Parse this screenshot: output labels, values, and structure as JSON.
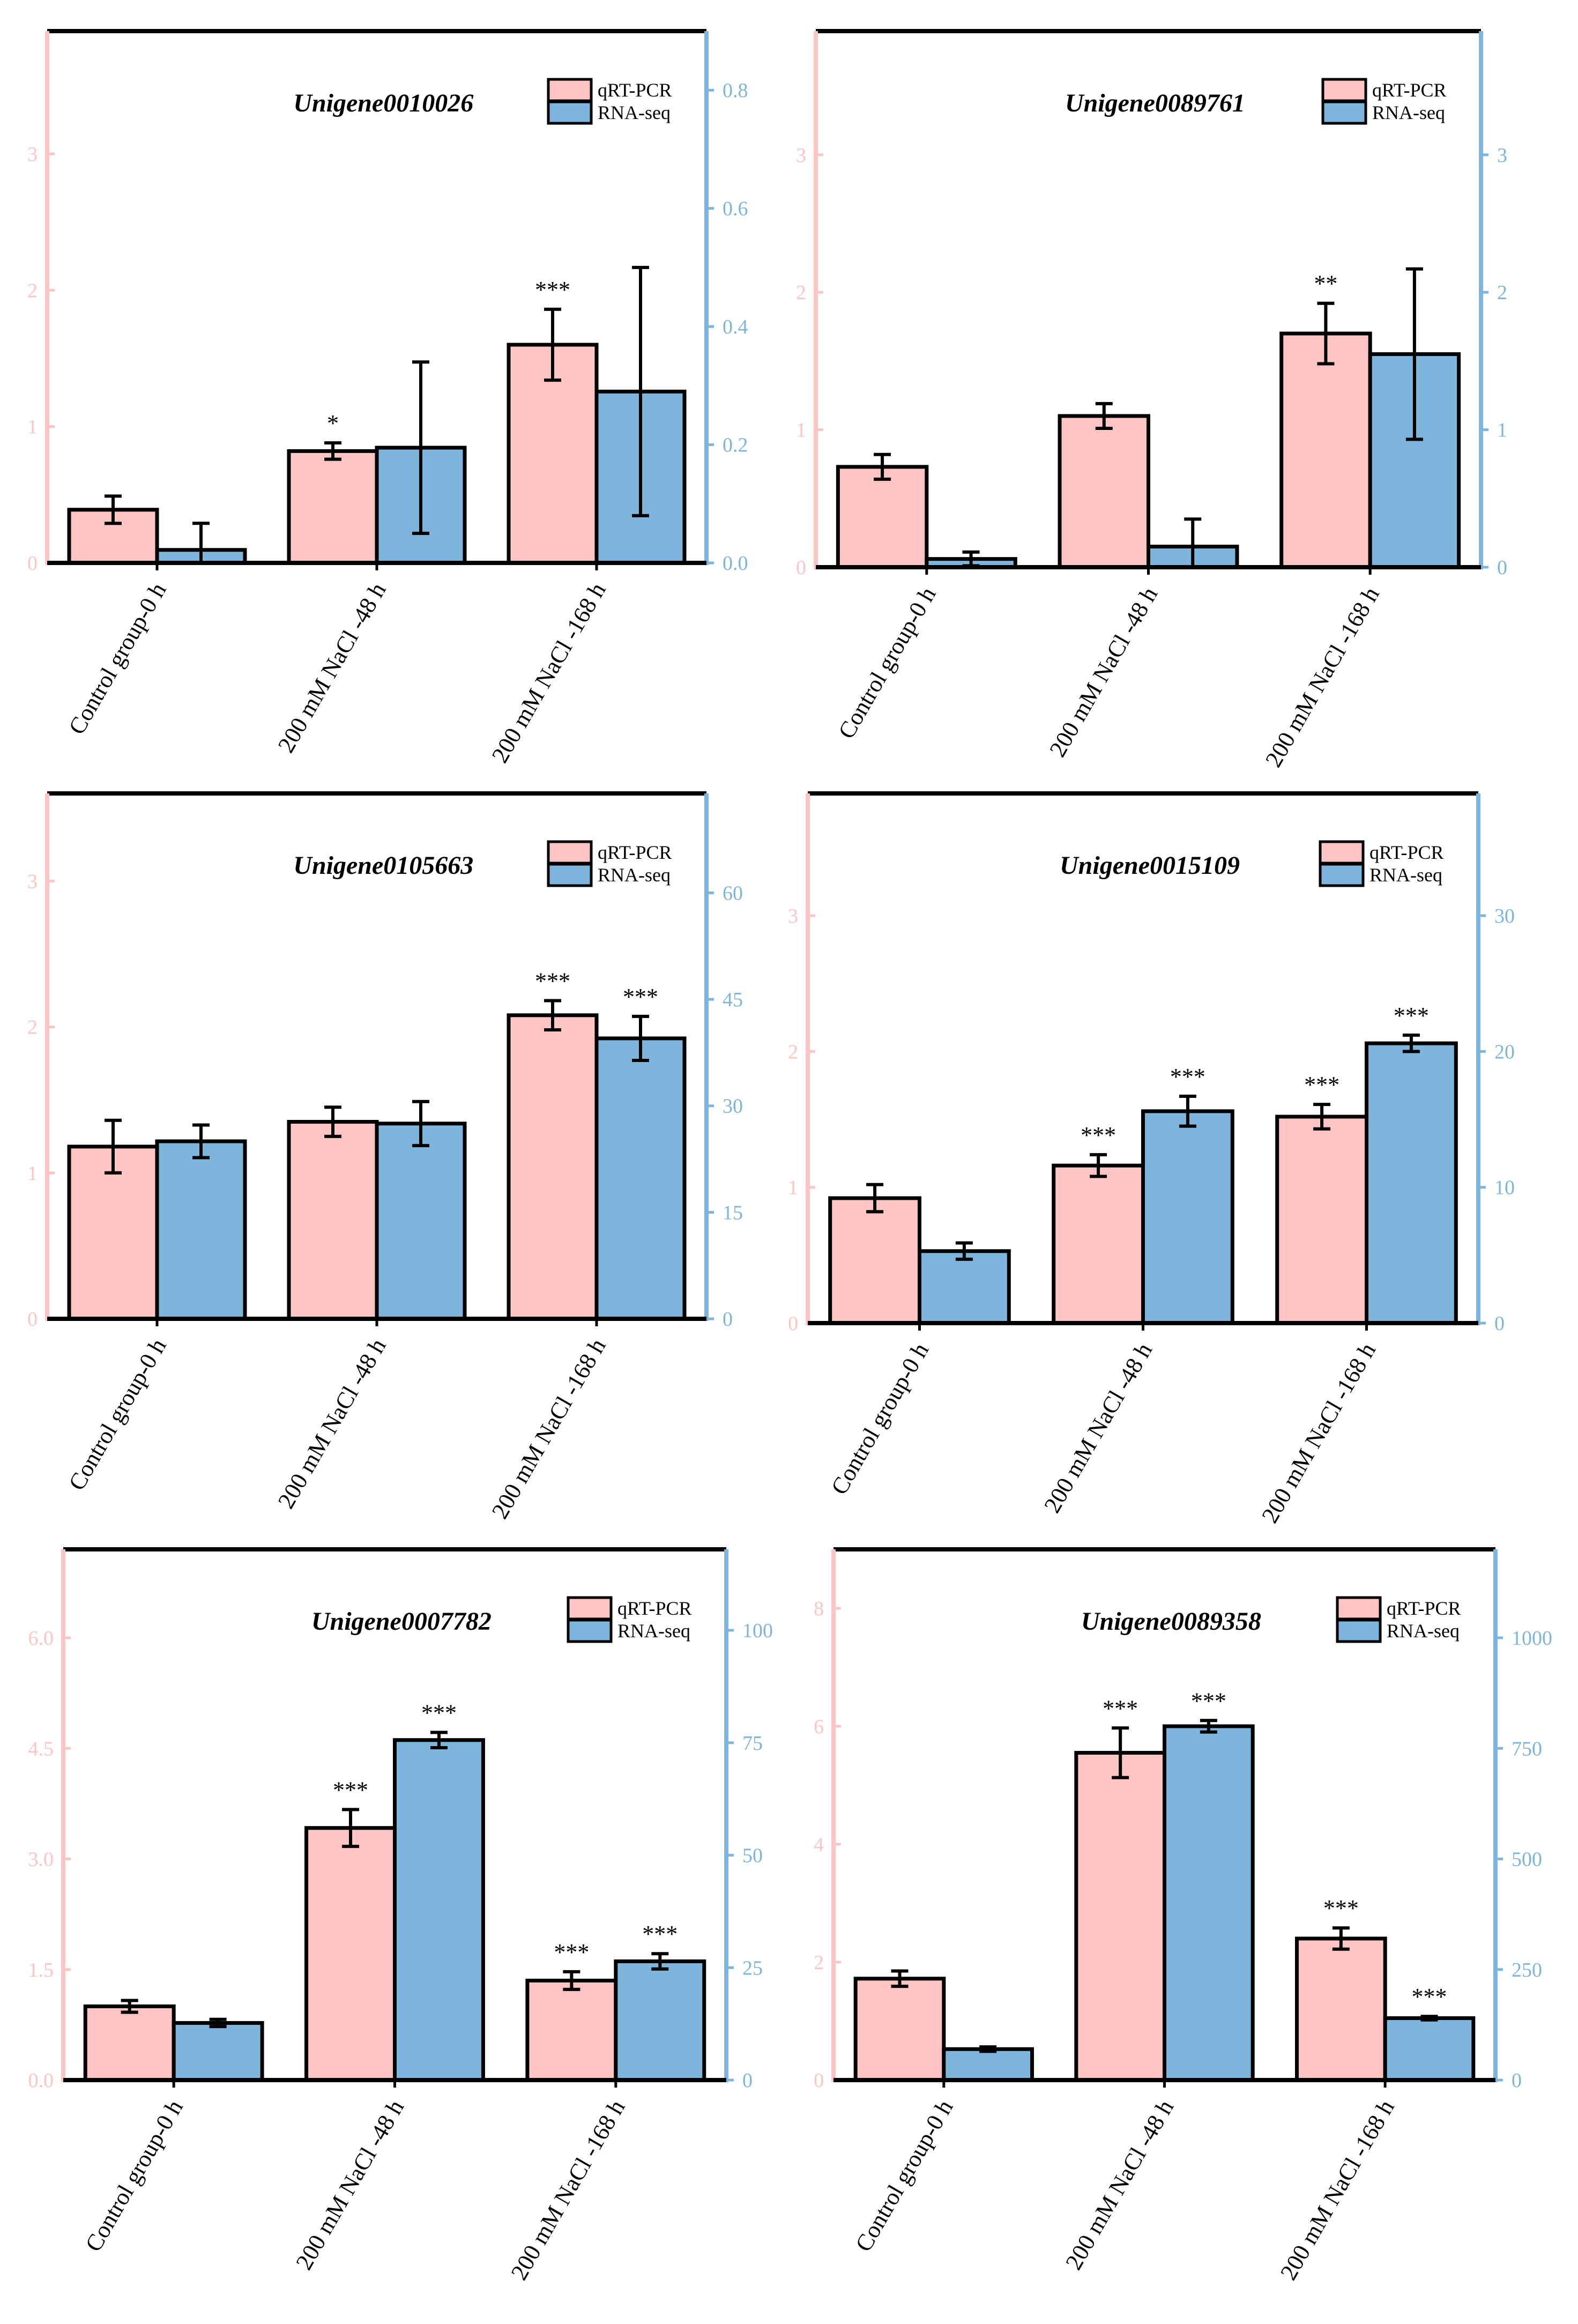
{
  "colors": {
    "qrt": "#FFC4C4",
    "rna": "#7DB5DD",
    "left_axis": "#FFC4C4",
    "right_axis": "#7DB5DD",
    "frame": "#000000"
  },
  "chart_data": [
    {
      "type": "bar",
      "title": "Unigene0010026",
      "categories": [
        "Control group-0 h",
        "200 mM NaCl -48 h",
        "200 mM NaCl -168 h"
      ],
      "legend": [
        "qRT-PCR",
        "RNA-seq"
      ],
      "left_axis": {
        "ylim": [
          0,
          3.9
        ],
        "ticks": [
          "0",
          "1",
          "2",
          "3"
        ]
      },
      "right_axis": {
        "ylim": [
          0,
          0.9
        ],
        "ticks": [
          "0.0",
          "0.2",
          "0.4",
          "0.6",
          "0.8"
        ]
      },
      "series": [
        {
          "name": "qRT-PCR",
          "axis": "left",
          "values": [
            0.39,
            0.82,
            1.6
          ],
          "errors": [
            0.1,
            0.06,
            0.26
          ],
          "sig": [
            "",
            "*",
            "***"
          ]
        },
        {
          "name": "RNA-seq",
          "axis": "right",
          "values": [
            0.022,
            0.195,
            0.29
          ],
          "errors": [
            0.045,
            0.145,
            0.21
          ],
          "sig": [
            "",
            "",
            ""
          ]
        }
      ]
    },
    {
      "type": "bar",
      "title": "Unigene0089761",
      "categories": [
        "Control group-0 h",
        "200 mM NaCl -48 h",
        "200 mM NaCl -168 h"
      ],
      "legend": [
        "qRT-PCR",
        "RNA-seq"
      ],
      "left_axis": {
        "ylim": [
          0,
          3.9
        ],
        "ticks": [
          "0",
          "1",
          "2",
          "3"
        ]
      },
      "right_axis": {
        "ylim": [
          0,
          3.9
        ],
        "ticks": [
          "0",
          "1",
          "2",
          "3"
        ]
      },
      "series": [
        {
          "name": "qRT-PCR",
          "axis": "left",
          "values": [
            0.73,
            1.1,
            1.7
          ],
          "errors": [
            0.09,
            0.09,
            0.22
          ],
          "sig": [
            "",
            "",
            "**"
          ]
        },
        {
          "name": "RNA-seq",
          "axis": "right",
          "values": [
            0.06,
            0.15,
            1.55
          ],
          "errors": [
            0.05,
            0.2,
            0.62
          ],
          "sig": [
            "",
            "",
            ""
          ]
        }
      ]
    },
    {
      "type": "bar",
      "title": "Unigene0105663",
      "categories": [
        "Control group-0 h",
        "200 mM NaCl -48 h",
        "200 mM NaCl -168 h"
      ],
      "legend": [
        "qRT-PCR",
        "RNA-seq"
      ],
      "left_axis": {
        "ylim": [
          0,
          3.6
        ],
        "ticks": [
          "0",
          "1",
          "2",
          "3"
        ]
      },
      "right_axis": {
        "ylim": [
          0,
          74
        ],
        "ticks": [
          "0",
          "15",
          "30",
          "45",
          "60"
        ]
      },
      "series": [
        {
          "name": "qRT-PCR",
          "axis": "left",
          "values": [
            1.18,
            1.35,
            2.08
          ],
          "errors": [
            0.18,
            0.1,
            0.1
          ],
          "sig": [
            "",
            "",
            "***"
          ]
        },
        {
          "name": "RNA-seq",
          "axis": "right",
          "values": [
            25,
            27.5,
            39.5
          ],
          "errors": [
            2.3,
            3.1,
            3.1
          ],
          "sig": [
            "",
            "",
            "***"
          ]
        }
      ]
    },
    {
      "type": "bar",
      "title": "Unigene0015109",
      "categories": [
        "Control group-0 h",
        "200 mM NaCl -48 h",
        "200 mM NaCl -168 h"
      ],
      "legend": [
        "qRT-PCR",
        "RNA-seq"
      ],
      "left_axis": {
        "ylim": [
          0,
          3.9
        ],
        "ticks": [
          "0",
          "1",
          "2",
          "3"
        ]
      },
      "right_axis": {
        "ylim": [
          0,
          39
        ],
        "ticks": [
          "0",
          "10",
          "20",
          "30"
        ]
      },
      "series": [
        {
          "name": "qRT-PCR",
          "axis": "left",
          "values": [
            0.92,
            1.16,
            1.52
          ],
          "errors": [
            0.1,
            0.08,
            0.09
          ],
          "sig": [
            "",
            "***",
            "***"
          ]
        },
        {
          "name": "RNA-seq",
          "axis": "right",
          "values": [
            5.3,
            15.6,
            20.6
          ],
          "errors": [
            0.6,
            1.1,
            0.6
          ],
          "sig": [
            "",
            "***",
            "***"
          ]
        }
      ]
    },
    {
      "type": "bar",
      "title": "Unigene0007782",
      "categories": [
        "Control group-0 h",
        "200 mM NaCl -48 h",
        "200 mM NaCl -168 h"
      ],
      "legend": [
        "qRT-PCR",
        "RNA-seq"
      ],
      "left_axis": {
        "ylim": [
          0,
          7.2
        ],
        "ticks": [
          "0.0",
          "1.5",
          "3.0",
          "4.5",
          "6.0"
        ]
      },
      "right_axis": {
        "ylim": [
          0,
          118
        ],
        "ticks": [
          "0",
          "25",
          "50",
          "75",
          "100"
        ]
      },
      "series": [
        {
          "name": "qRT-PCR",
          "axis": "left",
          "values": [
            1.0,
            3.42,
            1.35
          ],
          "errors": [
            0.08,
            0.25,
            0.12
          ],
          "sig": [
            "",
            "***",
            "***"
          ]
        },
        {
          "name": "RNA-seq",
          "axis": "right",
          "values": [
            12.7,
            75.6,
            26.4
          ],
          "errors": [
            0.8,
            1.7,
            1.7
          ],
          "sig": [
            "",
            "***",
            "***"
          ]
        }
      ]
    },
    {
      "type": "bar",
      "title": "Unigene0089358",
      "categories": [
        "Control group-0 h",
        "200 mM NaCl -48 h",
        "200 mM NaCl -168 h"
      ],
      "legend": [
        "qRT-PCR",
        "RNA-seq"
      ],
      "left_axis": {
        "ylim": [
          0,
          9
        ],
        "ticks": [
          "0",
          "2",
          "4",
          "6",
          "8"
        ]
      },
      "right_axis": {
        "ylim": [
          0,
          1200
        ],
        "ticks": [
          "0",
          "250",
          "500",
          "750",
          "1000"
        ]
      },
      "series": [
        {
          "name": "qRT-PCR",
          "axis": "left",
          "values": [
            1.72,
            5.55,
            2.4
          ],
          "errors": [
            0.13,
            0.42,
            0.18
          ],
          "sig": [
            "",
            "***",
            "***"
          ]
        },
        {
          "name": "RNA-seq",
          "axis": "right",
          "values": [
            70,
            800,
            140
          ],
          "errors": [
            5,
            13,
            4
          ],
          "sig": [
            "",
            "***",
            "***"
          ]
        }
      ]
    }
  ]
}
